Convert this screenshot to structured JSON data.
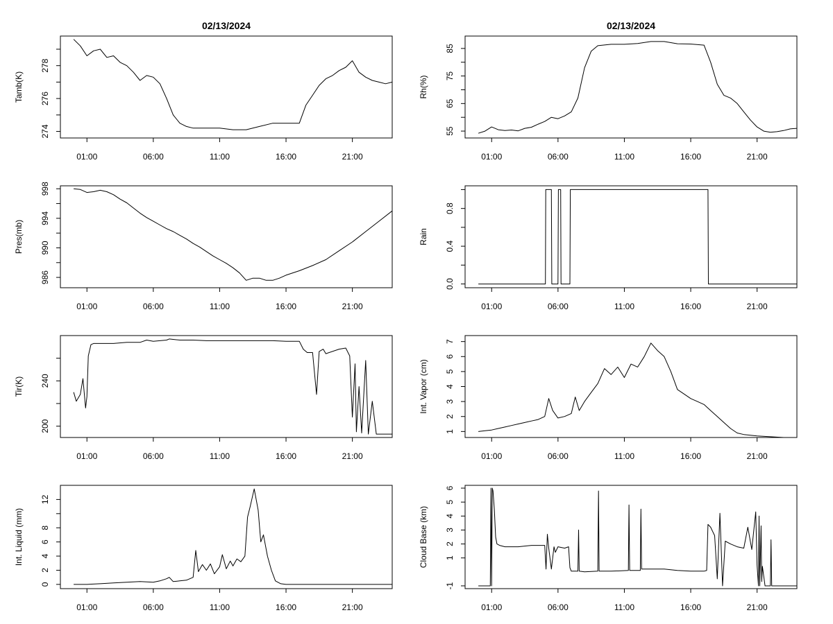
{
  "page_title": "02/13/2024",
  "chart_data": [
    {
      "type": "line",
      "title": "02/13/2024",
      "ylabel": "Tamb(K)",
      "xlabel": "",
      "xlim": [
        -1,
        24
      ],
      "ylim": [
        273.6,
        279.8
      ],
      "x_ticks": [
        1,
        6,
        11,
        16,
        21
      ],
      "x_tick_labels": [
        "01:00",
        "06:00",
        "11:00",
        "16:00",
        "21:00"
      ],
      "y_ticks": [
        274,
        275,
        276,
        277,
        278,
        279
      ],
      "y_tick_labels": [
        "274",
        "",
        "276",
        "",
        "278",
        ""
      ],
      "series": [
        {
          "name": "Tamb",
          "x": [
            0,
            0.5,
            1,
            1.5,
            2,
            2.5,
            3,
            3.5,
            4,
            4.5,
            5,
            5.5,
            6,
            6.5,
            7,
            7.5,
            8,
            8.5,
            9,
            10,
            11,
            12,
            13,
            14,
            15,
            16,
            17,
            17.5,
            18,
            18.5,
            19,
            19.5,
            20,
            20.5,
            21,
            21.5,
            22,
            22.5,
            23,
            23.5,
            24
          ],
          "values": [
            279.6,
            279.2,
            278.6,
            278.9,
            279.0,
            278.5,
            278.6,
            278.2,
            278.0,
            277.6,
            277.1,
            277.4,
            277.3,
            276.9,
            276.0,
            275.0,
            274.5,
            274.3,
            274.2,
            274.2,
            274.2,
            274.1,
            274.1,
            274.3,
            274.5,
            274.5,
            274.5,
            275.6,
            276.2,
            276.8,
            277.2,
            277.4,
            277.7,
            277.9,
            278.3,
            277.6,
            277.3,
            277.1,
            277.0,
            276.9,
            277.0
          ]
        }
      ]
    },
    {
      "type": "line",
      "title": "02/13/2024",
      "ylabel": "Rh(%)",
      "xlabel": "",
      "xlim": [
        -1,
        24
      ],
      "ylim": [
        52.5,
        89.5
      ],
      "x_ticks": [
        1,
        6,
        11,
        16,
        21
      ],
      "x_tick_labels": [
        "01:00",
        "06:00",
        "11:00",
        "16:00",
        "21:00"
      ],
      "y_ticks": [
        55,
        60,
        65,
        70,
        75,
        80,
        85
      ],
      "y_tick_labels": [
        "55",
        "",
        "65",
        "",
        "75",
        "",
        "85"
      ],
      "series": [
        {
          "name": "Rh",
          "x": [
            0,
            0.5,
            1,
            1.5,
            2,
            2.5,
            3,
            3.5,
            4,
            4.5,
            5,
            5.5,
            6,
            6.5,
            7,
            7.5,
            8,
            8.5,
            9,
            10,
            11,
            12,
            13,
            14,
            15,
            16,
            17,
            17.5,
            18,
            18.5,
            19,
            19.5,
            20,
            20.5,
            21,
            21.5,
            22,
            22.5,
            23,
            23.5,
            24
          ],
          "values": [
            54.2,
            55,
            56.5,
            55.5,
            55.2,
            55.4,
            55.1,
            56,
            56.4,
            57.5,
            58.5,
            60,
            59.5,
            60.5,
            62,
            67,
            78,
            84,
            86,
            86.5,
            86.5,
            86.8,
            87.5,
            87.5,
            86.7,
            86.6,
            86.2,
            80,
            72,
            68,
            67,
            65,
            62,
            59,
            56.5,
            55,
            54.6,
            54.8,
            55.2,
            55.8,
            56
          ]
        }
      ]
    },
    {
      "type": "line",
      "title": "",
      "ylabel": "Pres(mb)",
      "xlabel": "",
      "xlim": [
        -1,
        24
      ],
      "ylim": [
        984.6,
        998.4
      ],
      "x_ticks": [
        1,
        6,
        11,
        16,
        21
      ],
      "x_tick_labels": [
        "01:00",
        "06:00",
        "11:00",
        "16:00",
        "21:00"
      ],
      "y_ticks": [
        986,
        988,
        990,
        992,
        994,
        996,
        998
      ],
      "y_tick_labels": [
        "986",
        "",
        "990",
        "",
        "994",
        "",
        "998"
      ],
      "series": [
        {
          "name": "Pres",
          "x": [
            0,
            0.5,
            1,
            1.5,
            2,
            2.5,
            3,
            3.5,
            4,
            4.5,
            5,
            5.5,
            6,
            6.5,
            7,
            7.5,
            8,
            8.5,
            9,
            9.5,
            10,
            10.5,
            11,
            11.5,
            12,
            12.5,
            13,
            13.5,
            14,
            14.5,
            15,
            15.5,
            16,
            17,
            18,
            19,
            20,
            21,
            22,
            23,
            24
          ],
          "values": [
            998,
            997.9,
            997.5,
            997.6,
            997.8,
            997.6,
            997.2,
            996.6,
            996.1,
            995.4,
            994.7,
            994.1,
            993.6,
            993.1,
            992.6,
            992.2,
            991.7,
            991.2,
            990.6,
            990.1,
            989.5,
            988.9,
            988.4,
            987.9,
            987.3,
            986.6,
            985.6,
            985.9,
            985.9,
            985.6,
            985.6,
            985.9,
            986.3,
            986.9,
            987.6,
            988.4,
            989.6,
            990.8,
            992.2,
            993.6,
            995
          ]
        }
      ]
    },
    {
      "type": "line",
      "title": "",
      "ylabel": "Rain",
      "xlabel": "",
      "xlim": [
        -1,
        24
      ],
      "ylim": [
        -0.04,
        1.04
      ],
      "x_ticks": [
        1,
        6,
        11,
        16,
        21
      ],
      "x_tick_labels": [
        "01:00",
        "06:00",
        "11:00",
        "16:00",
        "21:00"
      ],
      "y_ticks": [
        0,
        0.2,
        0.4,
        0.6,
        0.8,
        1.0
      ],
      "y_tick_labels": [
        "0.0",
        "",
        "0.4",
        "",
        "0.8",
        ""
      ],
      "series": [
        {
          "name": "Rain",
          "x": [
            0,
            5.05,
            5.08,
            5.5,
            5.53,
            6.0,
            6.03,
            6.2,
            6.23,
            6.9,
            6.93,
            17.3,
            17.33,
            24
          ],
          "values": [
            0,
            0,
            1,
            1,
            0,
            0,
            1,
            1,
            0,
            0,
            1,
            1,
            0,
            0
          ]
        }
      ]
    },
    {
      "type": "line",
      "title": "",
      "ylabel": "Tir(K)",
      "xlabel": "",
      "xlim": [
        -1,
        24
      ],
      "ylim": [
        190,
        280
      ],
      "x_ticks": [
        1,
        6,
        11,
        16,
        21
      ],
      "x_tick_labels": [
        "01:00",
        "06:00",
        "11:00",
        "16:00",
        "21:00"
      ],
      "y_ticks": [
        200,
        220,
        240,
        260
      ],
      "y_tick_labels": [
        "200",
        "",
        "240",
        ""
      ],
      "series": [
        {
          "name": "Tir",
          "x": [
            0,
            0.2,
            0.5,
            0.7,
            0.9,
            1.0,
            1.1,
            1.3,
            1.5,
            2,
            3,
            4,
            5,
            5.5,
            6,
            7,
            7.2,
            8,
            9,
            10,
            11,
            12,
            13,
            14,
            15,
            16,
            17,
            17.3,
            17.6,
            18,
            18.3,
            18.5,
            18.8,
            19,
            20,
            20.5,
            20.8,
            21.0,
            21.2,
            21.3,
            21.5,
            21.7,
            22.0,
            22.2,
            22.5,
            22.8,
            23.0,
            24
          ],
          "values": [
            230,
            222,
            228,
            242,
            216,
            226,
            262,
            272,
            273,
            273,
            273,
            274,
            274,
            276,
            275,
            276,
            277,
            276,
            276,
            275.5,
            275.5,
            275.5,
            275.5,
            275.5,
            275.5,
            275,
            275,
            268,
            265,
            265,
            228,
            266,
            268,
            264,
            268,
            269,
            262,
            208,
            255,
            195,
            235,
            194,
            258,
            193,
            222,
            193,
            193,
            193
          ]
        }
      ]
    },
    {
      "type": "line",
      "title": "",
      "ylabel": "Int. Vapor (cm)",
      "xlabel": "",
      "xlim": [
        -1,
        24
      ],
      "ylim": [
        0.6,
        7.4
      ],
      "x_ticks": [
        1,
        6,
        11,
        16,
        21
      ],
      "x_tick_labels": [
        "01:00",
        "06:00",
        "11:00",
        "16:00",
        "21:00"
      ],
      "y_ticks": [
        1,
        2,
        3,
        4,
        5,
        6,
        7
      ],
      "y_tick_labels": [
        "1",
        "2",
        "3",
        "4",
        "5",
        "6",
        "7"
      ],
      "series": [
        {
          "name": "Int. Vapor",
          "x": [
            0,
            0.5,
            1,
            1.5,
            2,
            2.5,
            3,
            3.5,
            4,
            4.5,
            5,
            5.3,
            5.6,
            6,
            6.5,
            7,
            7.3,
            7.6,
            8,
            8.5,
            9,
            9.5,
            10,
            10.5,
            11,
            11.5,
            12,
            12.5,
            13,
            13.5,
            14,
            14.5,
            15,
            15.5,
            16,
            16.5,
            17,
            17.5,
            18,
            18.5,
            19,
            19.5,
            20,
            21,
            22,
            23,
            24
          ],
          "values": [
            1.0,
            1.05,
            1.1,
            1.2,
            1.3,
            1.4,
            1.5,
            1.6,
            1.7,
            1.8,
            2.0,
            3.2,
            2.4,
            1.9,
            2.0,
            2.2,
            3.3,
            2.4,
            3.0,
            3.6,
            4.2,
            5.2,
            4.8,
            5.3,
            4.6,
            5.5,
            5.3,
            6.0,
            6.9,
            6.4,
            6.0,
            5.0,
            3.8,
            3.5,
            3.2,
            3.0,
            2.8,
            2.4,
            2.0,
            1.6,
            1.2,
            0.9,
            0.8,
            0.7,
            0.65,
            0.6,
            0.6
          ]
        }
      ]
    },
    {
      "type": "line",
      "title": "",
      "ylabel": "Int. Liquid (mm)",
      "xlabel": "",
      "xlim": [
        -1,
        24
      ],
      "ylim": [
        -0.6,
        14
      ],
      "x_ticks": [
        1,
        6,
        11,
        16,
        21
      ],
      "x_tick_labels": [
        "01:00",
        "06:00",
        "11:00",
        "16:00",
        "21:00"
      ],
      "y_ticks": [
        0,
        2,
        4,
        6,
        8,
        10,
        12
      ],
      "y_tick_labels": [
        "0",
        "2",
        "4",
        "6",
        "8",
        "",
        "12"
      ],
      "series": [
        {
          "name": "Int. Liquid",
          "x": [
            0,
            1,
            2,
            3,
            4,
            5,
            6,
            6.5,
            7,
            7.2,
            7.5,
            8,
            8.5,
            9,
            9.2,
            9.4,
            9.7,
            10,
            10.3,
            10.6,
            11,
            11.2,
            11.5,
            11.8,
            12,
            12.3,
            12.6,
            12.9,
            13.1,
            13.3,
            13.6,
            13.9,
            14.1,
            14.3,
            14.6,
            14.9,
            15.2,
            15.6,
            16,
            17,
            18,
            19,
            20,
            21,
            22,
            23,
            24
          ],
          "values": [
            0,
            0,
            0.1,
            0.2,
            0.3,
            0.4,
            0.3,
            0.5,
            0.8,
            1.0,
            0.4,
            0.5,
            0.6,
            1.0,
            4.8,
            1.8,
            2.8,
            2.0,
            2.9,
            1.5,
            2.5,
            4.2,
            2.2,
            3.3,
            2.6,
            3.6,
            3.2,
            4.0,
            9.5,
            11,
            13.5,
            10.5,
            6.0,
            7.0,
            4.0,
            2.0,
            0.5,
            0.1,
            0,
            0,
            0,
            0,
            0,
            0,
            0,
            0,
            0
          ]
        }
      ]
    },
    {
      "type": "line",
      "title": "",
      "ylabel": "Cloud Base (km)",
      "xlabel": "",
      "xlim": [
        -1,
        24
      ],
      "ylim": [
        -1.2,
        6.2
      ],
      "x_ticks": [
        1,
        6,
        11,
        16,
        21
      ],
      "x_tick_labels": [
        "01:00",
        "06:00",
        "11:00",
        "16:00",
        "21:00"
      ],
      "y_ticks": [
        -1,
        1,
        2,
        3,
        4,
        5,
        6
      ],
      "y_tick_labels": [
        "-1",
        "1",
        "2",
        "3",
        "4",
        "5",
        "6"
      ],
      "series": [
        {
          "name": "Cloud Base",
          "x": [
            0,
            0.9,
            0.95,
            1.0,
            1.05,
            1.1,
            1.2,
            1.3,
            1.4,
            1.6,
            2,
            3,
            4,
            5,
            5.1,
            5.2,
            5.3,
            5.5,
            5.7,
            5.8,
            6.0,
            6.5,
            6.8,
            6.9,
            7.0,
            7.5,
            7.55,
            7.6,
            8,
            9,
            9.05,
            9.1,
            10,
            11.3,
            11.35,
            11.4,
            12.2,
            12.25,
            12.3,
            13,
            14,
            15,
            16,
            17,
            17.2,
            17.3,
            17.5,
            17.8,
            18,
            18.2,
            18.4,
            18.6,
            19,
            19.5,
            20,
            20.3,
            20.6,
            20.9,
            21.0,
            21.1,
            21.15,
            21.2,
            21.3,
            21.35,
            21.4,
            21.6,
            21.8,
            22,
            22.05,
            22.1,
            22.3,
            23,
            24
          ],
          "values": [
            -1,
            -1,
            6,
            -1,
            6,
            5.8,
            4.5,
            2.5,
            2.0,
            1.9,
            1.8,
            1.8,
            1.9,
            1.9,
            0.2,
            2.7,
            1.7,
            0.2,
            1.8,
            1.4,
            1.8,
            1.7,
            1.8,
            0.3,
            0.05,
            0.05,
            3.0,
            0.05,
            0,
            0.05,
            5.8,
            0.05,
            0.05,
            0.1,
            4.8,
            0.1,
            0.1,
            4.5,
            0.2,
            0.2,
            0.2,
            0.1,
            0.05,
            0.05,
            0.1,
            3.4,
            3.2,
            2.6,
            -0.5,
            4.2,
            -1,
            2.2,
            2.0,
            1.8,
            1.7,
            3.2,
            1.6,
            4.3,
            0.5,
            -1,
            4.0,
            -1,
            3.3,
            -0.7,
            0.4,
            -1,
            -1,
            -1,
            2.3,
            -1,
            -1,
            -1,
            -1
          ]
        }
      ]
    }
  ]
}
